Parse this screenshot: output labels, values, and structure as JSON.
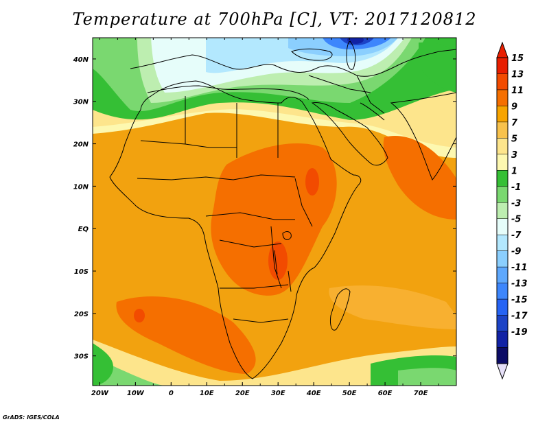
{
  "title": "Temperature at 700hPa [C], VT: 2017120812",
  "credit": "GrADS: IGES/COLA",
  "map": {
    "variable": "Temperature at 700hPa",
    "units": "C",
    "valid_time": "2017120812",
    "lon_range": [
      -22,
      80
    ],
    "lat_range": [
      -37,
      45
    ],
    "lon_ticks": [
      "20W",
      "10W",
      "0",
      "10E",
      "20E",
      "30E",
      "40E",
      "50E",
      "60E",
      "70E"
    ],
    "lat_ticks": [
      "40N",
      "30N",
      "20N",
      "10N",
      "EQ",
      "10S",
      "20S",
      "30S"
    ]
  },
  "colorbar": {
    "levels": [
      "15",
      "13",
      "11",
      "9",
      "7",
      "5",
      "3",
      "1",
      "-1",
      "-3",
      "-5",
      "-7",
      "-9",
      "-11",
      "-13",
      "-15",
      "-17",
      "-19"
    ],
    "colors": [
      "#e81e00",
      "#f24b00",
      "#f56f00",
      "#f7a400",
      "#f8c24c",
      "#fde58c",
      "#fdf8b0",
      "#35bf35",
      "#7ad870",
      "#bdeeb0",
      "#e6fdfa",
      "#b3e8fe",
      "#8bcffe",
      "#5ea8fd",
      "#3d86fc",
      "#2664f4",
      "#1c43c6",
      "#1122a5",
      "#0c0c66"
    ],
    "extend": "both"
  },
  "colors": {
    "ocean_base": "#f2a20f",
    "land_base": "#f6a428",
    "coastline": "#000000"
  }
}
